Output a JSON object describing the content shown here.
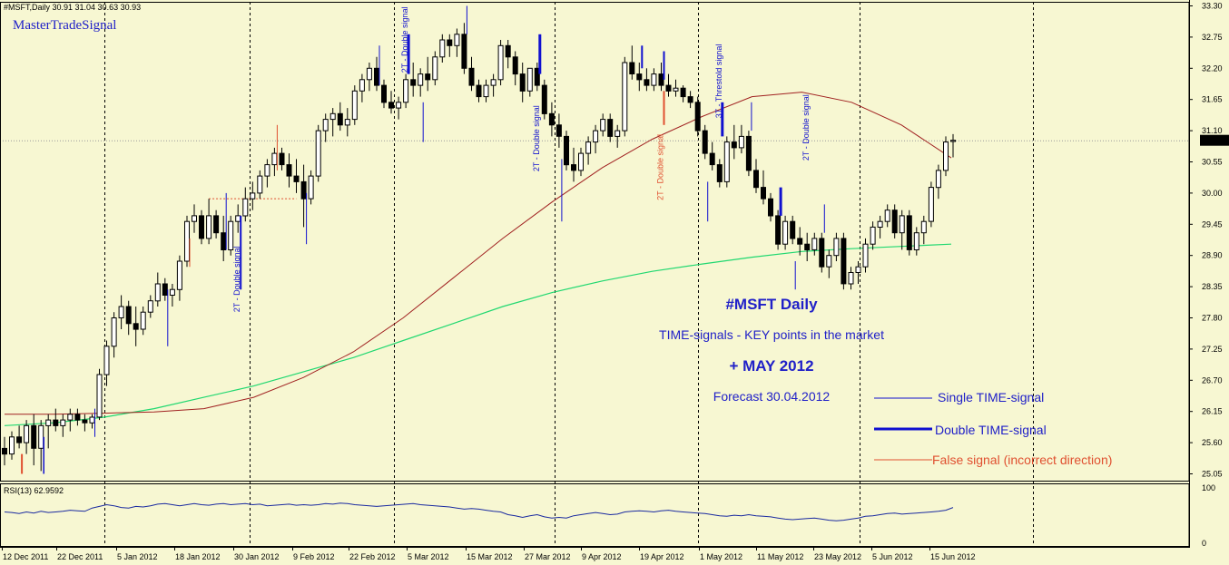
{
  "header": {
    "symbol_line": "#MSFT,Daily  30.91 31.04 30.63 30.93",
    "watermark": "MasterTradeSignal"
  },
  "colors": {
    "background": "#f7f7d2",
    "candle": "#000000",
    "signal": "#1010d0",
    "false_signal": "#e05030",
    "ma_fast": "#a02020",
    "ma_slow": "#20d870",
    "rsi_line": "#1a2aa0",
    "grid_dash": "#000000"
  },
  "chart_data": {
    "type": "candlestick",
    "price_axis": {
      "ticks": [
        "33.30",
        "32.75",
        "32.20",
        "31.65",
        "31.10",
        "30.55",
        "30.00",
        "29.45",
        "28.90",
        "28.35",
        "27.80",
        "27.25",
        "26.70",
        "26.15",
        "25.60",
        "25.05"
      ],
      "range": [
        25.05,
        33.3
      ],
      "current_price": "30.93"
    },
    "date_axis": {
      "labels": [
        "12 Dec 2011",
        "22 Dec 2011",
        "5 Jan 2012",
        "18 Jan 2012",
        "30 Jan 2012",
        "9 Feb 2012",
        "22 Feb 2012",
        "5 Mar 2012",
        "15 Mar 2012",
        "27 Mar 2012",
        "9 Apr 2012",
        "19 Apr 2012",
        "1 May 2012",
        "11 May 2012",
        "23 May 2012",
        "5 Jun 2012",
        "15 Jun 2012"
      ]
    },
    "ohlc": [
      [
        25.5,
        25.7,
        25.2,
        25.4
      ],
      [
        25.4,
        25.8,
        25.3,
        25.7
      ],
      [
        25.7,
        25.9,
        25.5,
        25.6
      ],
      [
        25.6,
        26.0,
        25.4,
        25.9
      ],
      [
        25.9,
        26.1,
        25.2,
        25.5
      ],
      [
        25.5,
        26.0,
        25.1,
        25.9
      ],
      [
        25.9,
        26.1,
        25.5,
        26.0
      ],
      [
        26.0,
        26.2,
        25.8,
        25.9
      ],
      [
        25.9,
        26.1,
        25.7,
        26.0
      ],
      [
        26.0,
        26.2,
        25.8,
        26.1
      ],
      [
        26.1,
        26.2,
        25.9,
        26.0
      ],
      [
        26.0,
        26.1,
        25.8,
        25.95
      ],
      [
        25.95,
        26.1,
        25.85,
        26.05
      ],
      [
        26.05,
        26.9,
        26.0,
        26.8
      ],
      [
        26.8,
        27.4,
        26.6,
        27.3
      ],
      [
        27.3,
        27.9,
        27.1,
        27.8
      ],
      [
        27.8,
        28.2,
        27.6,
        28.0
      ],
      [
        28.0,
        28.1,
        27.5,
        27.7
      ],
      [
        27.7,
        28.0,
        27.3,
        27.6
      ],
      [
        27.6,
        28.0,
        27.5,
        27.9
      ],
      [
        27.9,
        28.2,
        27.8,
        28.1
      ],
      [
        28.1,
        28.6,
        28.0,
        28.4
      ],
      [
        28.4,
        28.5,
        28.1,
        28.2
      ],
      [
        28.2,
        28.4,
        28.0,
        28.3
      ],
      [
        28.3,
        28.9,
        28.1,
        28.8
      ],
      [
        28.8,
        29.6,
        28.7,
        29.5
      ],
      [
        29.5,
        29.8,
        29.3,
        29.6
      ],
      [
        29.6,
        29.7,
        29.1,
        29.2
      ],
      [
        29.2,
        29.9,
        29.1,
        29.6
      ],
      [
        29.6,
        29.7,
        29.2,
        29.3
      ],
      [
        29.3,
        29.6,
        28.8,
        29.0
      ],
      [
        29.0,
        29.6,
        28.9,
        29.5
      ],
      [
        29.5,
        29.8,
        29.3,
        29.6
      ],
      [
        29.6,
        30.1,
        29.5,
        29.9
      ],
      [
        29.9,
        30.2,
        29.7,
        30.0
      ],
      [
        30.0,
        30.4,
        29.9,
        30.3
      ],
      [
        30.3,
        30.6,
        30.1,
        30.5
      ],
      [
        30.5,
        30.8,
        30.3,
        30.7
      ],
      [
        30.7,
        30.8,
        30.4,
        30.5
      ],
      [
        30.5,
        30.7,
        30.1,
        30.3
      ],
      [
        30.3,
        30.6,
        30.0,
        30.2
      ],
      [
        30.2,
        30.5,
        29.4,
        29.9
      ],
      [
        29.9,
        30.4,
        29.8,
        30.3
      ],
      [
        30.3,
        31.2,
        30.2,
        31.1
      ],
      [
        31.1,
        31.4,
        30.9,
        31.3
      ],
      [
        31.3,
        31.5,
        31.0,
        31.4
      ],
      [
        31.4,
        31.6,
        31.1,
        31.2
      ],
      [
        31.2,
        31.5,
        31.0,
        31.3
      ],
      [
        31.3,
        31.9,
        31.2,
        31.8
      ],
      [
        31.8,
        32.1,
        31.6,
        32.0
      ],
      [
        32.0,
        32.3,
        31.8,
        32.2
      ],
      [
        32.2,
        32.4,
        31.8,
        31.9
      ],
      [
        31.9,
        32.0,
        31.5,
        31.6
      ],
      [
        31.6,
        31.8,
        31.4,
        31.5
      ],
      [
        31.5,
        31.7,
        31.3,
        31.6
      ],
      [
        31.6,
        32.1,
        31.5,
        32.0
      ],
      [
        32.0,
        32.3,
        31.7,
        31.9
      ],
      [
        31.9,
        32.2,
        31.7,
        32.1
      ],
      [
        32.1,
        32.4,
        31.8,
        32.0
      ],
      [
        32.0,
        32.5,
        31.9,
        32.4
      ],
      [
        32.4,
        32.8,
        32.3,
        32.7
      ],
      [
        32.7,
        32.8,
        32.4,
        32.6
      ],
      [
        32.6,
        32.9,
        32.4,
        32.8
      ],
      [
        32.8,
        33.0,
        32.1,
        32.2
      ],
      [
        32.2,
        32.4,
        31.8,
        31.9
      ],
      [
        31.9,
        32.0,
        31.6,
        31.7
      ],
      [
        31.7,
        32.0,
        31.6,
        31.9
      ],
      [
        31.9,
        32.1,
        31.7,
        32.0
      ],
      [
        32.0,
        32.7,
        31.9,
        32.6
      ],
      [
        32.6,
        32.7,
        32.2,
        32.4
      ],
      [
        32.4,
        32.5,
        31.9,
        32.1
      ],
      [
        32.1,
        32.3,
        31.6,
        31.8
      ],
      [
        31.8,
        32.2,
        31.7,
        32.2
      ],
      [
        32.2,
        32.3,
        31.8,
        31.9
      ],
      [
        31.9,
        32.0,
        31.3,
        31.4
      ],
      [
        31.4,
        31.6,
        31.0,
        31.2
      ],
      [
        31.2,
        31.4,
        30.8,
        31.0
      ],
      [
        31.0,
        31.1,
        30.4,
        30.5
      ],
      [
        30.5,
        30.8,
        30.2,
        30.4
      ],
      [
        30.4,
        30.8,
        30.3,
        30.7
      ],
      [
        30.7,
        31.0,
        30.5,
        30.9
      ],
      [
        30.9,
        31.2,
        30.7,
        31.1
      ],
      [
        31.1,
        31.4,
        31.0,
        31.3
      ],
      [
        31.3,
        31.4,
        30.9,
        31.0
      ],
      [
        31.0,
        31.2,
        30.8,
        31.1
      ],
      [
        31.1,
        32.4,
        31.0,
        32.3
      ],
      [
        32.3,
        32.6,
        32.0,
        32.1
      ],
      [
        32.1,
        32.3,
        31.8,
        32.0
      ],
      [
        32.0,
        32.2,
        31.8,
        31.9
      ],
      [
        31.9,
        32.2,
        31.8,
        32.1
      ],
      [
        32.1,
        32.3,
        31.8,
        31.9
      ],
      [
        31.9,
        32.1,
        31.7,
        31.8
      ],
      [
        31.8,
        32.0,
        31.7,
        31.85
      ],
      [
        31.85,
        31.9,
        31.6,
        31.7
      ],
      [
        31.7,
        31.8,
        31.5,
        31.6
      ],
      [
        31.6,
        31.7,
        31.0,
        31.1
      ],
      [
        31.1,
        31.2,
        30.6,
        30.7
      ],
      [
        30.7,
        30.9,
        30.4,
        30.5
      ],
      [
        30.5,
        30.6,
        30.1,
        30.2
      ],
      [
        30.2,
        31.0,
        30.1,
        30.9
      ],
      [
        30.9,
        31.2,
        30.6,
        30.8
      ],
      [
        30.8,
        31.2,
        30.7,
        31.0
      ],
      [
        31.0,
        31.1,
        30.3,
        30.4
      ],
      [
        30.4,
        30.6,
        30.0,
        30.1
      ],
      [
        30.1,
        30.4,
        29.8,
        29.9
      ],
      [
        29.9,
        30.0,
        29.5,
        29.6
      ],
      [
        29.6,
        29.7,
        29.0,
        29.1
      ],
      [
        29.1,
        29.6,
        29.0,
        29.5
      ],
      [
        29.5,
        29.6,
        29.1,
        29.2
      ],
      [
        29.2,
        29.4,
        28.9,
        29.1
      ],
      [
        29.1,
        29.3,
        28.8,
        29.0
      ],
      [
        29.0,
        29.3,
        28.9,
        29.2
      ],
      [
        29.2,
        29.3,
        28.6,
        28.7
      ],
      [
        28.7,
        29.0,
        28.5,
        28.9
      ],
      [
        28.9,
        29.3,
        28.8,
        29.2
      ],
      [
        29.2,
        29.3,
        28.3,
        28.4
      ],
      [
        28.4,
        28.7,
        28.3,
        28.6
      ],
      [
        28.6,
        28.8,
        28.4,
        28.7
      ],
      [
        28.7,
        29.2,
        28.6,
        29.1
      ],
      [
        29.1,
        29.5,
        29.0,
        29.4
      ],
      [
        29.4,
        29.6,
        29.2,
        29.5
      ],
      [
        29.5,
        29.8,
        29.4,
        29.7
      ],
      [
        29.7,
        29.8,
        29.2,
        29.3
      ],
      [
        29.3,
        29.7,
        29.0,
        29.6
      ],
      [
        29.6,
        29.7,
        28.9,
        29.0
      ],
      [
        29.0,
        29.4,
        28.9,
        29.3
      ],
      [
        29.3,
        29.6,
        29.1,
        29.5
      ],
      [
        29.5,
        30.2,
        29.4,
        30.1
      ],
      [
        30.1,
        30.5,
        29.9,
        30.4
      ],
      [
        30.4,
        31.0,
        30.3,
        30.9
      ],
      [
        30.91,
        31.04,
        30.63,
        30.93
      ]
    ],
    "ma_fast": [
      26.1,
      26.1,
      26.12,
      26.14,
      26.2,
      26.4,
      26.75,
      27.2,
      27.8,
      28.5,
      29.2,
      29.85,
      30.45,
      30.95,
      31.35,
      31.7,
      31.78,
      31.6,
      31.2,
      30.62
    ],
    "ma_slow": [
      25.9,
      25.95,
      26.05,
      26.2,
      26.4,
      26.6,
      26.85,
      27.1,
      27.4,
      27.7,
      28.0,
      28.25,
      28.45,
      28.62,
      28.75,
      28.87,
      28.97,
      29.02,
      29.06,
      29.1
    ],
    "signals": [
      {
        "type": "double",
        "label": "2T - Double signal"
      },
      {
        "type": "double",
        "label": "2T - Double signal"
      },
      {
        "type": "double",
        "label": "2T - Double signal"
      },
      {
        "type": "false",
        "label": "2T - Double signal"
      },
      {
        "type": "threshold",
        "label": "3T - Threstold signal"
      },
      {
        "type": "double",
        "label": "2T - Double signal"
      }
    ],
    "rsi": {
      "label": "RSI(13) 62.9592",
      "ticks": [
        "100",
        "0"
      ],
      "values": [
        55,
        54,
        52,
        55,
        53,
        56,
        54,
        55,
        56,
        58,
        57,
        56,
        62,
        65,
        68,
        66,
        63,
        62,
        65,
        64,
        66,
        69,
        70,
        68,
        66,
        68,
        70,
        68,
        67,
        69,
        70,
        68,
        69,
        70,
        68,
        69,
        66,
        67,
        68,
        69,
        67,
        68,
        67,
        68,
        70,
        69,
        71,
        70,
        68,
        67,
        66,
        65,
        66,
        67,
        68,
        69,
        70,
        68,
        67,
        66,
        65,
        64,
        62,
        60,
        61,
        60,
        58,
        56,
        55,
        50,
        48,
        45,
        48,
        50,
        46,
        44,
        45,
        44,
        48,
        50,
        52,
        54,
        52,
        50,
        51,
        55,
        56,
        57,
        56,
        55,
        57,
        58,
        56,
        55,
        54,
        53,
        52,
        50,
        48,
        47,
        49,
        48,
        50,
        48,
        47,
        46,
        44,
        42,
        41,
        42,
        43,
        44,
        42,
        40,
        39,
        40,
        42,
        44,
        47,
        48,
        50,
        52,
        53,
        51,
        52,
        53,
        54,
        55,
        56,
        58,
        62.96
      ]
    },
    "forecast": {
      "line1": "#MSFT  Daily",
      "line2": "TIME-signals - KEY points in the market",
      "line3": "+ MAY 2012",
      "line4": "Forecast 30.04.2012"
    },
    "legend": [
      {
        "label": "Single TIME-signal",
        "style": "single"
      },
      {
        "label": "Double TIME-signal",
        "style": "double"
      },
      {
        "label": "False signal (incorrect direction)",
        "style": "false"
      }
    ]
  }
}
